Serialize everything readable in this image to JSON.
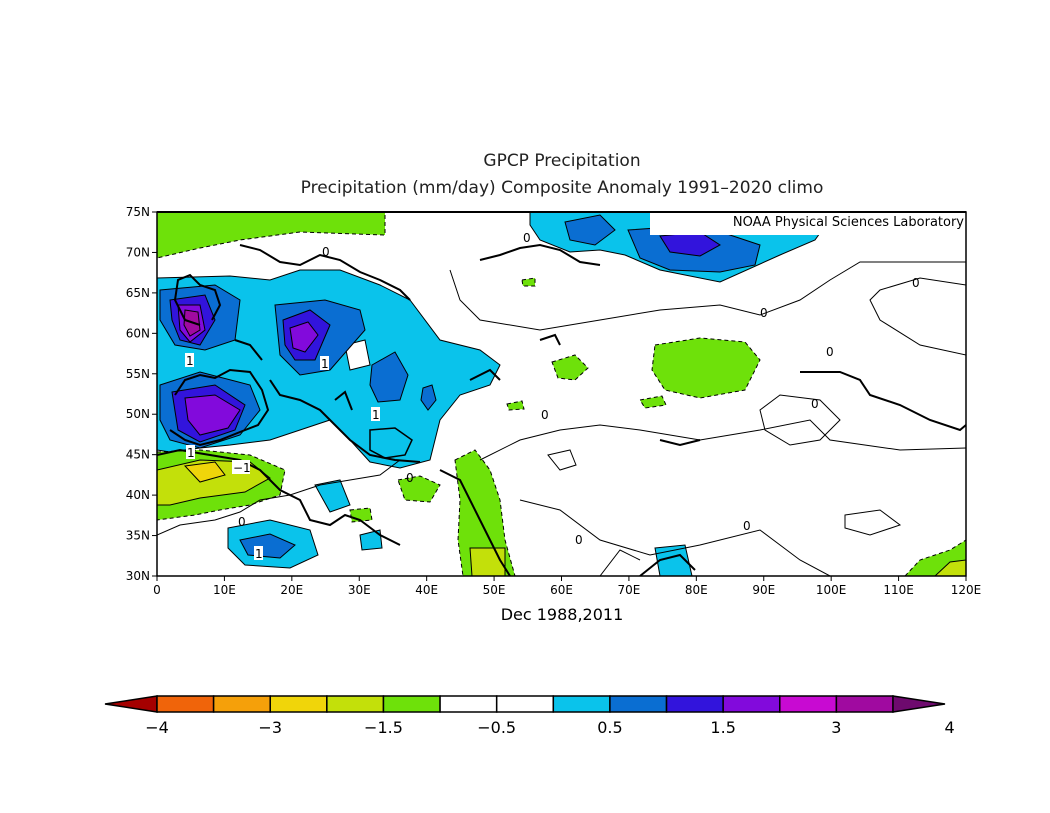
{
  "title": "GPCP Precipitation",
  "subtitle": "Precipitation (mm/day) Composite Anomaly 1991–2020 climo",
  "credit": "NOAA Physical Sciences Laboratory",
  "period_label": "Dec 1988,2011",
  "map": {
    "lat_labels": [
      "75N",
      "70N",
      "65N",
      "60N",
      "55N",
      "50N",
      "45N",
      "40N",
      "35N",
      "30N"
    ],
    "lon_labels": [
      "0",
      "10E",
      "20E",
      "30E",
      "40E",
      "50E",
      "60E",
      "70E",
      "80E",
      "90E",
      "100E",
      "110E",
      "120E"
    ],
    "contour_labels": [
      "0",
      "0",
      "0",
      "0",
      "0",
      "0",
      "0",
      "0",
      "0",
      "0",
      "0",
      "1",
      "1",
      "1",
      "1",
      "1",
      "−1"
    ]
  },
  "colorbar": {
    "labels": [
      "−4",
      "−3",
      "−1.5",
      "−0.5",
      "0.5",
      "1.5",
      "3",
      "4"
    ],
    "colors": [
      "#a50000",
      "#f0640a",
      "#f5a00a",
      "#f0d50a",
      "#c3e00a",
      "#6ee10a",
      "#ffffff",
      "#ffffff",
      "#0ac3eb",
      "#0a6ed2",
      "#3214dc",
      "#820adc",
      "#c80ad2",
      "#a00aa0",
      "#6e0a6e"
    ]
  }
}
